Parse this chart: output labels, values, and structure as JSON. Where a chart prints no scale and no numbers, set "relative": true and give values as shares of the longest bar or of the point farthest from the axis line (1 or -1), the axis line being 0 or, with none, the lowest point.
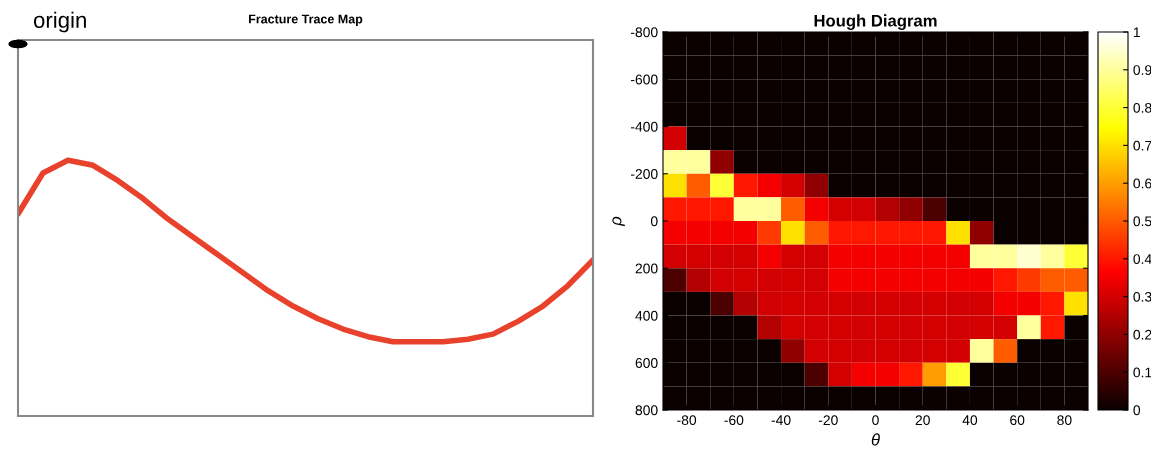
{
  "chart_data": [
    {
      "type": "line",
      "title": "Fracture Trace Map",
      "relative": true,
      "color": "#e8412c",
      "categories": [
        null,
        null,
        null,
        null,
        null,
        null,
        null,
        null,
        null,
        null,
        null,
        null,
        null,
        null,
        null,
        null,
        null,
        null,
        null,
        null,
        null,
        null,
        null,
        null
      ],
      "values": [
        0.79,
        0.95,
        1.0,
        0.98,
        0.92,
        0.85,
        0.77,
        0.7,
        0.63,
        0.56,
        0.49,
        0.43,
        0.38,
        0.34,
        0.31,
        0.29,
        0.29,
        0.29,
        0.3,
        0.32,
        0.37,
        0.43,
        0.51,
        0.61
      ],
      "annotations": [
        "origin"
      ]
    },
    {
      "type": "heatmap",
      "title": "Hough Diagram",
      "xlabel": "θ",
      "ylabel": "ρ",
      "xlim": [
        -90,
        90
      ],
      "ylim": [
        800,
        -800
      ],
      "xticks": [
        -80,
        -60,
        -40,
        -20,
        0,
        20,
        40,
        60,
        80
      ],
      "yticks": [
        -800,
        -600,
        -400,
        -200,
        0,
        200,
        400,
        600,
        800
      ],
      "clim": [
        0,
        1
      ],
      "cticks": [
        0,
        0.1,
        0.2,
        0.3,
        0.4,
        0.5,
        0.6,
        0.7,
        0.8,
        0.9,
        1
      ],
      "cells": [
        [
          0,
          0,
          0,
          0,
          0,
          0,
          0,
          0,
          0,
          0,
          0,
          0,
          0,
          0,
          0,
          0,
          0,
          0
        ],
        [
          0,
          0,
          0,
          0,
          0,
          0,
          0,
          0,
          0,
          0,
          0,
          0,
          0,
          0,
          0,
          0,
          0,
          0
        ],
        [
          0,
          0,
          0,
          0,
          0,
          0,
          0,
          0,
          0,
          0,
          0,
          0,
          0,
          0,
          0,
          0,
          0,
          0
        ],
        [
          0,
          0,
          0,
          0,
          0,
          0,
          0,
          0,
          0,
          0,
          0,
          0,
          0,
          0,
          0,
          0,
          0,
          0
        ],
        [
          0.3,
          0,
          0,
          0,
          0,
          0,
          0,
          0,
          0,
          0,
          0,
          0,
          0,
          0,
          0,
          0,
          0,
          0
        ],
        [
          0.9,
          0.9,
          0.2,
          0,
          0,
          0,
          0,
          0,
          0,
          0,
          0,
          0,
          0,
          0,
          0,
          0,
          0,
          0
        ],
        [
          0.7,
          0.5,
          0.8,
          0.4,
          0.35,
          0.3,
          0.2,
          0,
          0,
          0,
          0,
          0,
          0,
          0,
          0,
          0,
          0,
          0
        ],
        [
          0.4,
          0.4,
          0.4,
          0.9,
          0.9,
          0.5,
          0.35,
          0.3,
          0.3,
          0.25,
          0.2,
          0.1,
          0,
          0,
          0,
          0,
          0,
          0
        ],
        [
          0.35,
          0.35,
          0.35,
          0.35,
          0.45,
          0.7,
          0.5,
          0.4,
          0.4,
          0.4,
          0.4,
          0.4,
          0.7,
          0.2,
          0,
          0,
          0,
          0
        ],
        [
          0.3,
          0.3,
          0.3,
          0.3,
          0.35,
          0.3,
          0.3,
          0.35,
          0.35,
          0.35,
          0.35,
          0.35,
          0.35,
          0.9,
          0.9,
          0.95,
          0.9,
          0.8
        ],
        [
          0.1,
          0.25,
          0.3,
          0.3,
          0.3,
          0.3,
          0.3,
          0.35,
          0.35,
          0.35,
          0.35,
          0.35,
          0.35,
          0.35,
          0.4,
          0.45,
          0.5,
          0.5
        ],
        [
          0,
          0,
          0.1,
          0.25,
          0.3,
          0.3,
          0.3,
          0.3,
          0.3,
          0.3,
          0.3,
          0.3,
          0.3,
          0.3,
          0.35,
          0.35,
          0.4,
          0.7
        ],
        [
          0,
          0,
          0,
          0,
          0.25,
          0.3,
          0.3,
          0.3,
          0.3,
          0.3,
          0.3,
          0.3,
          0.3,
          0.3,
          0.3,
          0.9,
          0.4,
          0
        ],
        [
          0,
          0,
          0,
          0,
          0,
          0.2,
          0.3,
          0.3,
          0.3,
          0.3,
          0.3,
          0.3,
          0.3,
          0.9,
          0.5,
          0,
          0,
          0
        ],
        [
          0,
          0,
          0,
          0,
          0,
          0,
          0.1,
          0.3,
          0.35,
          0.35,
          0.4,
          0.6,
          0.8,
          0,
          0,
          0,
          0,
          0
        ],
        [
          0,
          0,
          0,
          0,
          0,
          0,
          0,
          0,
          0,
          0,
          0,
          0,
          0,
          0,
          0,
          0,
          0,
          0
        ]
      ]
    }
  ]
}
